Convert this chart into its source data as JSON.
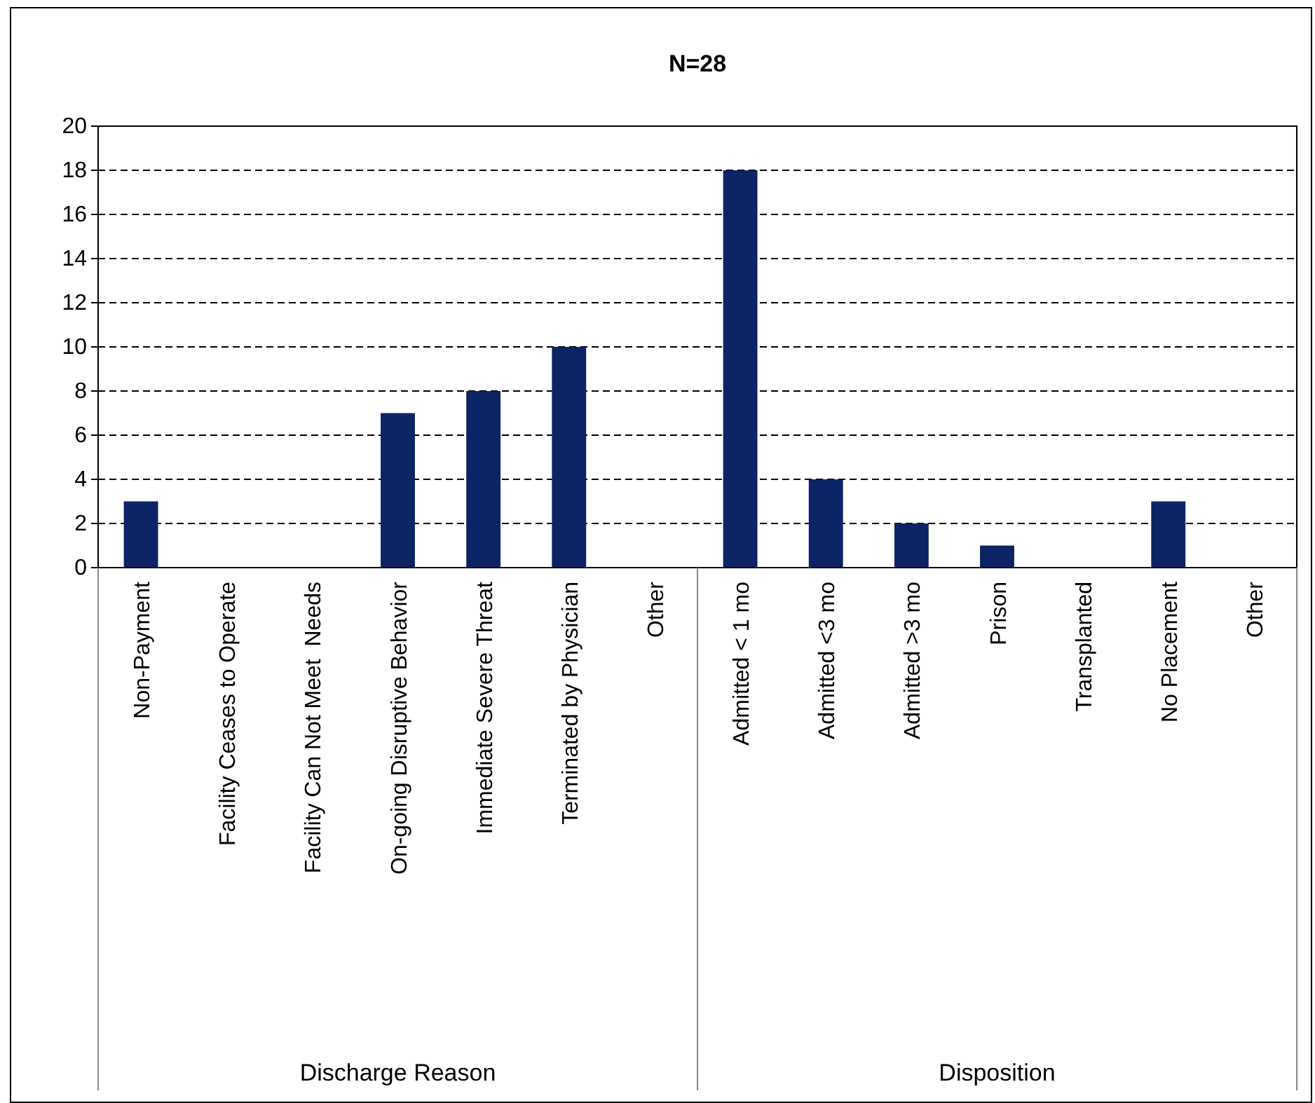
{
  "chart_data": {
    "type": "bar",
    "title": "N=28",
    "categories": [
      "Non-Payment",
      "Facility Ceases to Operate",
      "Facility Can Not Meet  Needs",
      "On-going Disruptive Behavior",
      "Immediate Severe Threat",
      "Terminated by Physician",
      "Other",
      "Admitted < 1 mo",
      "Admitted <3 mo",
      "Admitted >3 mo",
      "Prison",
      "Transplanted",
      "No Placement",
      "Other"
    ],
    "values": [
      3,
      0,
      0,
      7,
      8,
      10,
      0,
      18,
      4,
      2,
      1,
      0,
      3,
      0
    ],
    "color": "#0c2366",
    "ylim": [
      0,
      20
    ],
    "yticks": [
      0,
      2,
      4,
      6,
      8,
      10,
      12,
      14,
      16,
      18,
      20
    ],
    "grid": "y",
    "annotations": [
      "Discharge Reason",
      "Disposition"
    ]
  }
}
